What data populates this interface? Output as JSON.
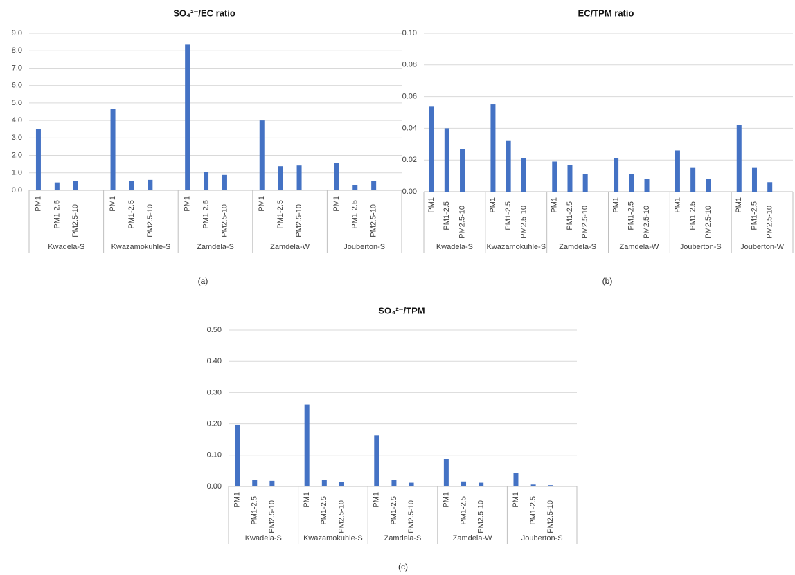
{
  "chart_data": [
    {
      "type": "bar",
      "title": "SO₄²⁻/EC ratio",
      "panel_label": "(a)",
      "color": "#4472c4",
      "grid": true,
      "groups": [
        "Kwadela-S",
        "Kwazamokuhle-S",
        "Zamdela-S",
        "Zamdela-W",
        "Jouberton-S"
      ],
      "categories": [
        "PM1",
        "PM1-2.5",
        "PM2.5-10",
        "PM1",
        "PM1-2.5",
        "PM2.5-10",
        "PM1",
        "PM1-2.5",
        "PM2.5-10",
        "PM1",
        "PM1-2.5",
        "PM2.5-10",
        "PM1",
        "PM1-2.5",
        "PM2.5-10"
      ],
      "values": [
        3.5,
        0.45,
        0.55,
        4.65,
        0.55,
        0.6,
        8.35,
        1.05,
        0.88,
        4.0,
        1.38,
        1.42,
        1.55,
        0.28,
        0.52
      ],
      "ylim": [
        0,
        9
      ],
      "yticks": [
        {
          "value": 0,
          "label": "0.0"
        },
        {
          "value": 1,
          "label": "1.0"
        },
        {
          "value": 2,
          "label": "2.0"
        },
        {
          "value": 3,
          "label": "3.0"
        },
        {
          "value": 4,
          "label": "4.0"
        },
        {
          "value": 5,
          "label": "5.0"
        },
        {
          "value": 6,
          "label": "6.0"
        },
        {
          "value": 7,
          "label": "7.0"
        },
        {
          "value": 8,
          "label": "8.0"
        },
        {
          "value": 9,
          "label": "9.0"
        }
      ]
    },
    {
      "type": "bar",
      "title": "EC/TPM ratio",
      "panel_label": "(b)",
      "color": "#4472c4",
      "grid": true,
      "groups": [
        "Kwadela-S",
        "Kwazamokuhle-S",
        "Zamdela-S",
        "Zamdela-W",
        "Jouberton-S",
        "Jouberton-W"
      ],
      "categories": [
        "PM1",
        "PM1-2.5",
        "PM2.5-10",
        "PM1",
        "PM1-2.5",
        "PM2.5-10",
        "PM1",
        "PM1-2.5",
        "PM2.5-10",
        "PM1",
        "PM1-2.5",
        "PM2.5-10",
        "PM1",
        "PM1-2.5",
        "PM2.5-10",
        "PM1",
        "PM1-2.5",
        "PM2.5-10"
      ],
      "values": [
        0.054,
        0.04,
        0.027,
        0.055,
        0.032,
        0.021,
        0.019,
        0.017,
        0.011,
        0.021,
        0.011,
        0.008,
        0.026,
        0.015,
        0.008,
        0.042,
        0.015,
        0.006
      ],
      "ylim": [
        0,
        0.1
      ],
      "yticks": [
        {
          "value": 0,
          "label": "0.00"
        },
        {
          "value": 0.02,
          "label": "0.02"
        },
        {
          "value": 0.04,
          "label": "0.04"
        },
        {
          "value": 0.06,
          "label": "0.06"
        },
        {
          "value": 0.08,
          "label": "0.08"
        },
        {
          "value": 0.1,
          "label": "0.10"
        }
      ]
    },
    {
      "type": "bar",
      "title": "SO₄²⁻/TPM",
      "panel_label": "(c)",
      "color": "#4472c4",
      "grid": true,
      "groups": [
        "Kwadela-S",
        "Kwazamokuhle-S",
        "Zamdela-S",
        "Zamdela-W",
        "Jouberton-S"
      ],
      "categories": [
        "PM1",
        "PM1-2.5",
        "PM2.5-10",
        "PM1",
        "PM1-2.5",
        "PM2.5-10",
        "PM1",
        "PM1-2.5",
        "PM2.5-10",
        "PM1",
        "PM1-2.5",
        "PM2.5-10",
        "PM1",
        "PM1-2.5",
        "PM2.5-10"
      ],
      "values": [
        0.197,
        0.022,
        0.018,
        0.262,
        0.02,
        0.014,
        0.163,
        0.02,
        0.012,
        0.087,
        0.016,
        0.012,
        0.044,
        0.006,
        0.004
      ],
      "ylim": [
        0,
        0.5
      ],
      "yticks": [
        {
          "value": 0,
          "label": "0.00"
        },
        {
          "value": 0.1,
          "label": "0.10"
        },
        {
          "value": 0.2,
          "label": "0.20"
        },
        {
          "value": 0.3,
          "label": "0.30"
        },
        {
          "value": 0.4,
          "label": "0.40"
        },
        {
          "value": 0.5,
          "label": "0.50"
        }
      ]
    }
  ]
}
